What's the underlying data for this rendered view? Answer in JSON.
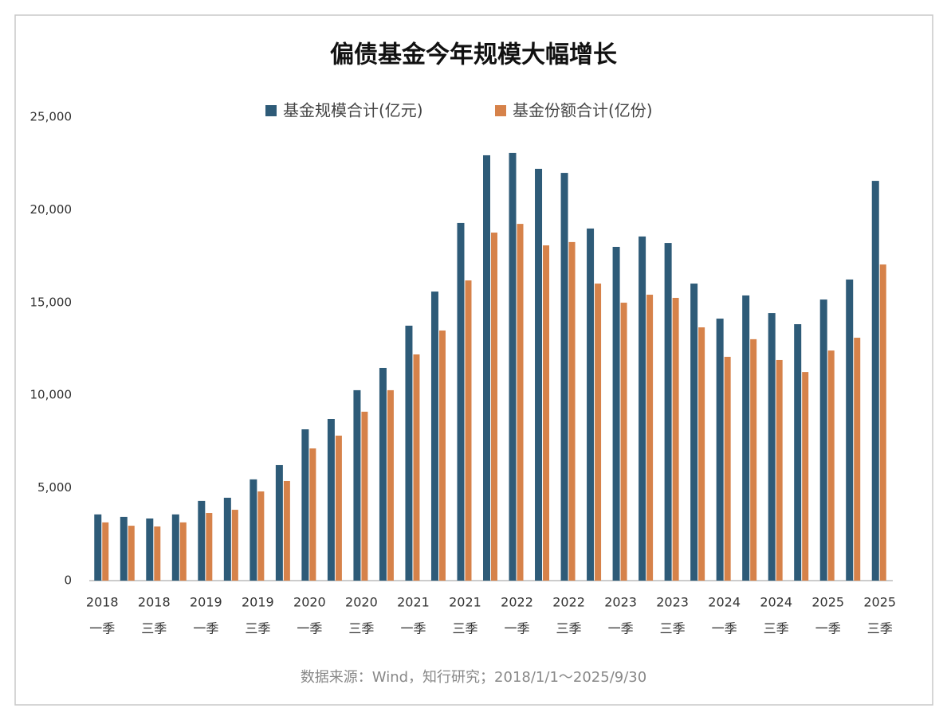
{
  "chart_data": {
    "type": "bar",
    "title": "偏债基金今年规模大幅增长",
    "categories": [
      [
        "2018",
        "一季"
      ],
      null,
      [
        "2018",
        "三季"
      ],
      null,
      [
        "2019",
        "一季"
      ],
      null,
      [
        "2019",
        "三季"
      ],
      null,
      [
        "2020",
        "一季"
      ],
      null,
      [
        "2020",
        "三季"
      ],
      null,
      [
        "2021",
        "一季"
      ],
      null,
      [
        "2021",
        "三季"
      ],
      null,
      [
        "2022",
        "一季"
      ],
      null,
      [
        "2022",
        "三季"
      ],
      null,
      [
        "2023",
        "一季"
      ],
      null,
      [
        "2023",
        "三季"
      ],
      null,
      [
        "2024",
        "一季"
      ],
      null,
      [
        "2024",
        "三季"
      ],
      null,
      [
        "2025",
        "一季"
      ],
      null,
      [
        "2025",
        "三季"
      ]
    ],
    "series": [
      {
        "name": "基金规模合计(亿元)",
        "color": "#2e5b78",
        "values": [
          3570,
          3440,
          3350,
          3570,
          4300,
          4470,
          5460,
          6230,
          8160,
          8720,
          10270,
          11470,
          13750,
          15590,
          19290,
          22940,
          23070,
          22210,
          21990,
          18990,
          18000,
          18560,
          18210,
          16020,
          14130,
          15380,
          14430,
          13830,
          15160,
          16240,
          21560
        ]
      },
      {
        "name": "基金份额合计(亿份)",
        "color": "#d6824a",
        "values": [
          3140,
          2960,
          2920,
          3140,
          3650,
          3820,
          4810,
          5370,
          7130,
          7820,
          9110,
          10270,
          12200,
          13490,
          16190,
          18770,
          19240,
          18080,
          18260,
          16020,
          14990,
          15420,
          15250,
          13660,
          12070,
          13020,
          11900,
          11250,
          12410,
          13100,
          17050
        ]
      }
    ],
    "ylim": [
      0,
      25000
    ],
    "yticks": [
      0,
      {
        "value": 5000,
        "label": "5,000"
      },
      {
        "value": 10000,
        "label": "10,000"
      },
      {
        "value": 15000,
        "label": "15,000"
      },
      {
        "value": 20000,
        "label": "20,000"
      },
      {
        "value": 25000,
        "label": "25,000"
      }
    ],
    "grid": false,
    "source": "数据来源：Wind，知行研究；2018/1/1～2025/9/30"
  }
}
